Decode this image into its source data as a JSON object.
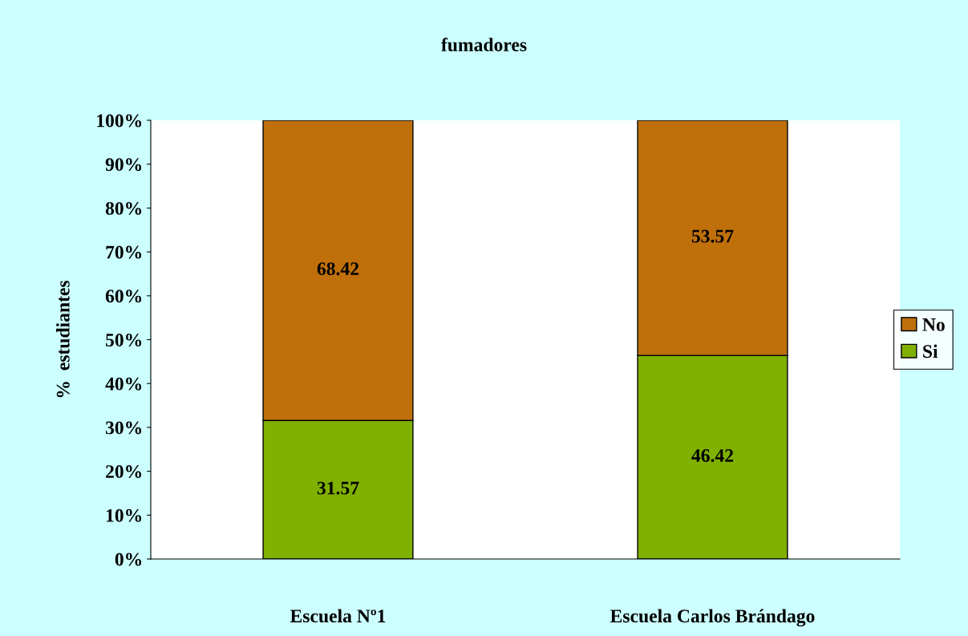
{
  "chart_data": {
    "type": "bar",
    "title": "fumadores",
    "ylabel": "%  estudiantes",
    "categories": [
      "Escuela Nº1",
      "Escuela Carlos Brándago"
    ],
    "stacked": true,
    "series": [
      {
        "name": "Si",
        "color": "#80b000",
        "values": [
          31.57,
          46.42
        ]
      },
      {
        "name": "No",
        "color": "#c0700a",
        "values": [
          68.42,
          53.57
        ]
      }
    ],
    "data_labels": true,
    "ylim": [
      0,
      100
    ],
    "yticks": [
      {
        "value": 0,
        "label": "0%"
      },
      {
        "value": 10,
        "label": "10%"
      },
      {
        "value": 20,
        "label": "20%"
      },
      {
        "value": 30,
        "label": "30%"
      },
      {
        "value": 40,
        "label": "40%"
      },
      {
        "value": 50,
        "label": "50%"
      },
      {
        "value": 60,
        "label": "60%"
      },
      {
        "value": 70,
        "label": "70%"
      },
      {
        "value": 80,
        "label": "80%"
      },
      {
        "value": 90,
        "label": "90%"
      },
      {
        "value": 100,
        "label": "100%"
      }
    ],
    "grid": false,
    "legend": "right"
  }
}
